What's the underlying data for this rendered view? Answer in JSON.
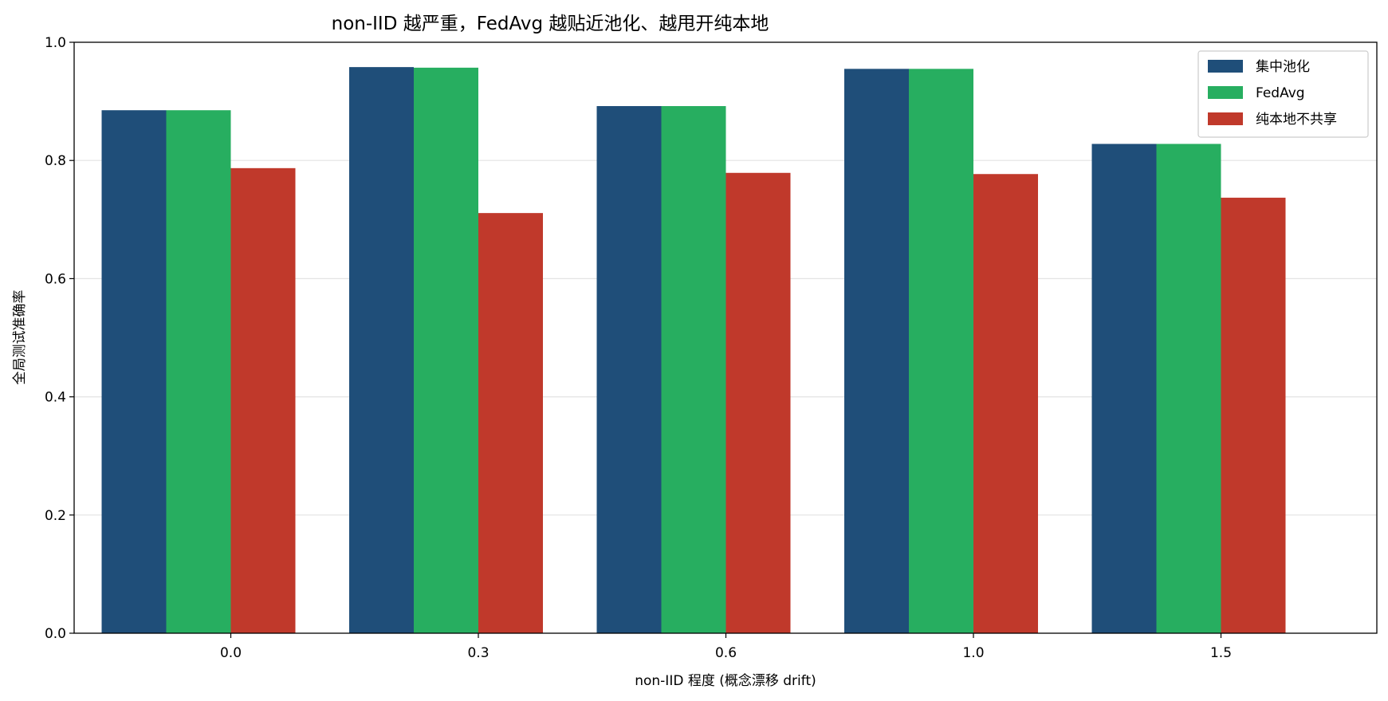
{
  "chart_data": {
    "type": "bar",
    "title": "non-IID 越严重，FedAvg 越贴近池化、越甩开纯本地",
    "xlabel": "non-IID 程度 (概念漂移 drift)",
    "ylabel": "全局测试准确率",
    "categories": [
      "0.0",
      "0.3",
      "0.6",
      "1.0",
      "1.5"
    ],
    "ylim": [
      0,
      1.0
    ],
    "yticks": [
      "0.0",
      "0.2",
      "0.4",
      "0.6",
      "0.8",
      "1.0"
    ],
    "grid": "y",
    "legend_position": "top-right",
    "series": [
      {
        "name": "集中池化",
        "color": "#1f4e79",
        "values": [
          0.885,
          0.958,
          0.892,
          0.955,
          0.828
        ]
      },
      {
        "name": "FedAvg",
        "color": "#27ae60",
        "values": [
          0.885,
          0.957,
          0.892,
          0.955,
          0.828
        ]
      },
      {
        "name": "纯本地不共享",
        "color": "#c0392b",
        "values": [
          0.787,
          0.711,
          0.779,
          0.777,
          0.737
        ]
      }
    ]
  }
}
